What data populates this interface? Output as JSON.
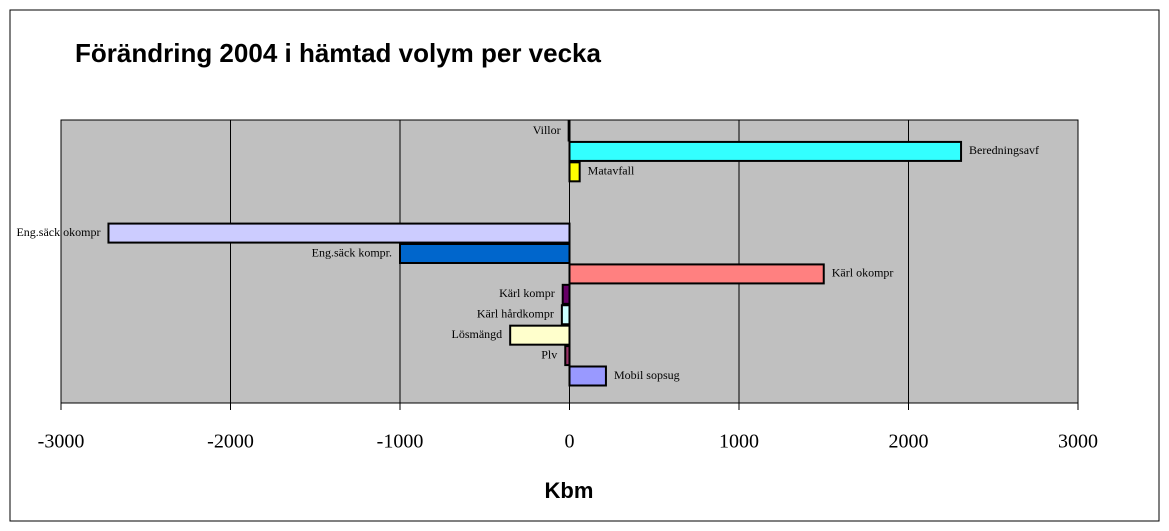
{
  "chart_data": {
    "type": "barh",
    "title": "Förändring 2004 i hämtad volym per vecka",
    "xlabel": "Kbm",
    "categories": [
      "Villor",
      "Beredningsavf",
      "Matavfall",
      null,
      null,
      "Eng.säck okompr",
      "Eng.säck kompr.",
      "Kärl okompr",
      "Kärl kompr",
      "Kärl hårdkompr",
      "Lösmängd",
      "Plv",
      "Mobil sopsug"
    ],
    "values": [
      -5,
      2310,
      60,
      0,
      0,
      -2720,
      -1000,
      1500,
      -40,
      -45,
      -350,
      -25,
      215
    ],
    "colors": [
      "#000000",
      "#33ffff",
      "#ffff00",
      "#000000",
      "#000000",
      "#ccccff",
      "#0066cc",
      "#ff8080",
      "#660066",
      "#ccffff",
      "#ffffcc",
      "#993366",
      "#9999ff"
    ],
    "xlim": [
      -3000,
      3000
    ],
    "xticks": [
      -3000,
      -2000,
      -1000,
      0,
      1000,
      2000,
      3000
    ],
    "grid": true
  }
}
